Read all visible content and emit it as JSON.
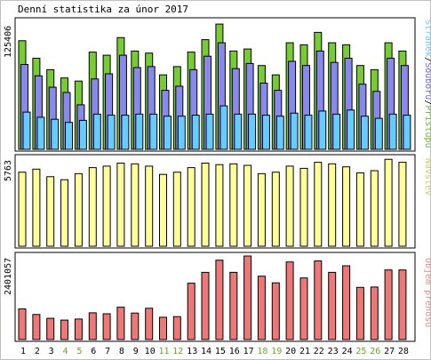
{
  "chart_data": [
    {
      "type": "bar",
      "title": "Denní statistika za únor 2017",
      "ymax_label": "125406",
      "ymax": 125406,
      "categories": [
        "1",
        "2",
        "3",
        "4",
        "5",
        "6",
        "7",
        "8",
        "9",
        "10",
        "11",
        "12",
        "13",
        "14",
        "15",
        "16",
        "17",
        "18",
        "19",
        "20",
        "21",
        "22",
        "23",
        "24",
        "25",
        "26",
        "27",
        "28"
      ],
      "weekend_days": [
        "4",
        "5",
        "11",
        "12",
        "18",
        "19",
        "25",
        "26"
      ],
      "side_label_parts": [
        {
          "text": "Stránek",
          "color": "#66ccff"
        },
        {
          "text": "/",
          "color": "#000000"
        },
        {
          "text": "Souborů",
          "color": "#6666ee"
        },
        {
          "text": "/",
          "color": "#000000"
        },
        {
          "text": "Přístupů",
          "color": "#66bb22"
        }
      ],
      "series": [
        {
          "name": "Přístupů",
          "color": "#77cc33",
          "values": [
            105000,
            88000,
            77000,
            69000,
            66000,
            94000,
            91000,
            108000,
            95000,
            93000,
            72000,
            80000,
            94000,
            106000,
            121000,
            95000,
            97000,
            81000,
            72000,
            103000,
            101000,
            113000,
            103000,
            101000,
            81000,
            77000,
            103000,
            95000
          ]
        },
        {
          "name": "Souborů",
          "color": "#8888ee",
          "values": [
            82000,
            71000,
            60000,
            55000,
            43000,
            68000,
            73000,
            91000,
            79000,
            80000,
            57000,
            61000,
            77000,
            90000,
            103000,
            78000,
            83000,
            64000,
            57000,
            85000,
            81000,
            95000,
            84000,
            88000,
            63000,
            56000,
            88000,
            81000
          ]
        },
        {
          "name": "Stránek",
          "color": "#66ccff",
          "values": [
            36000,
            31000,
            29000,
            26000,
            28000,
            34000,
            33000,
            33000,
            34000,
            34000,
            32000,
            32000,
            33000,
            34000,
            42000,
            34000,
            34000,
            33000,
            32000,
            35000,
            33000,
            37000,
            34000,
            38000,
            32000,
            30000,
            34000,
            33000
          ]
        }
      ]
    },
    {
      "type": "bar",
      "ymax_label": "5763",
      "ymax": 5763,
      "categories": [
        "1",
        "2",
        "3",
        "4",
        "5",
        "6",
        "7",
        "8",
        "9",
        "10",
        "11",
        "12",
        "13",
        "14",
        "15",
        "16",
        "17",
        "18",
        "19",
        "20",
        "21",
        "22",
        "23",
        "24",
        "25",
        "26",
        "27",
        "28"
      ],
      "side_label": "Návštěv",
      "series": [
        {
          "name": "Návštěv",
          "color": "#ffff99",
          "values": [
            4900,
            5100,
            4600,
            4400,
            4800,
            5200,
            5300,
            5500,
            5450,
            5300,
            4750,
            4900,
            5200,
            5500,
            5400,
            5450,
            5350,
            4800,
            4900,
            5300,
            5150,
            5550,
            5450,
            5250,
            4850,
            5000,
            5750,
            5550
          ]
        }
      ]
    },
    {
      "type": "bar",
      "ymax_label": "2401057",
      "ymax": 2401057,
      "categories": [
        "1",
        "2",
        "3",
        "4",
        "5",
        "6",
        "7",
        "8",
        "9",
        "10",
        "11",
        "12",
        "13",
        "14",
        "15",
        "16",
        "17",
        "18",
        "19",
        "20",
        "21",
        "22",
        "23",
        "24",
        "25",
        "26",
        "27",
        "28"
      ],
      "side_label": "Objem přenosu",
      "series": [
        {
          "name": "Objem přenosu",
          "color": "#ee7777",
          "values": [
            880000,
            720000,
            610000,
            560000,
            590000,
            770000,
            740000,
            930000,
            760000,
            900000,
            640000,
            660000,
            1620000,
            1930000,
            2280000,
            1930000,
            2400000,
            1820000,
            1630000,
            2230000,
            1770000,
            2260000,
            1930000,
            2120000,
            1500000,
            1510000,
            2000000,
            2000000
          ]
        }
      ]
    }
  ]
}
